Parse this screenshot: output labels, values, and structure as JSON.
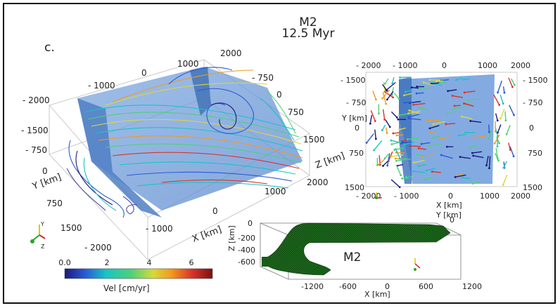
{
  "title": {
    "model": "M2",
    "time": "12.5 Myr"
  },
  "panel_label": "c.",
  "left_view": {
    "axis_top_ticks": [
      "- 2000",
      "- 1000",
      "0",
      "1000",
      "2000"
    ],
    "axis_left_ticks": [
      "- 1500",
      "- 750",
      "0",
      "750",
      "1500"
    ],
    "axis_right_ticks": [
      "- 750",
      "0",
      "750",
      "1500"
    ],
    "axis_bottom_ticks": [
      "- 2000",
      "- 1000",
      "0",
      "1000",
      "2000"
    ],
    "y_label": "Y [km]",
    "x_label": "X [km]",
    "z_label": "Z [km]"
  },
  "right_view": {
    "top_ticks": [
      "- 2000",
      "- 1000",
      "0",
      "1000",
      "2000"
    ],
    "left_ticks": [
      "- 1500",
      "- 750",
      "0",
      "750",
      "1500"
    ],
    "right_ticks": [
      "- 1500",
      "- 750",
      "0",
      "750",
      "1500"
    ],
    "bottom_ticks": [
      "- 2000",
      "- 1000",
      "0",
      "1000",
      "2000"
    ],
    "y_label": "Y [km]",
    "x_label": "X [km]",
    "y_label_bottom": "Y [km]"
  },
  "inset": {
    "model_label": "M2",
    "z_ticks": [
      "0",
      "-200",
      "-400",
      "-600"
    ],
    "z_label": "Z [km]",
    "x_ticks": [
      "-1200",
      "-600",
      "0",
      "600",
      "1200"
    ],
    "x_label": "X [km]",
    "top_tick": "0"
  },
  "colorbar": {
    "ticks": [
      "0.0",
      "2",
      "4",
      "6"
    ],
    "label": "Vel [cm/yr]",
    "min": 0,
    "max": 7,
    "colors": [
      "#1a1a7a",
      "#2a5ad6",
      "#18c4c4",
      "#4fd07a",
      "#d8d83a",
      "#f39a1c",
      "#d9342a",
      "#7a1010"
    ]
  },
  "triad": {
    "y": "Y",
    "z": "Z"
  }
}
